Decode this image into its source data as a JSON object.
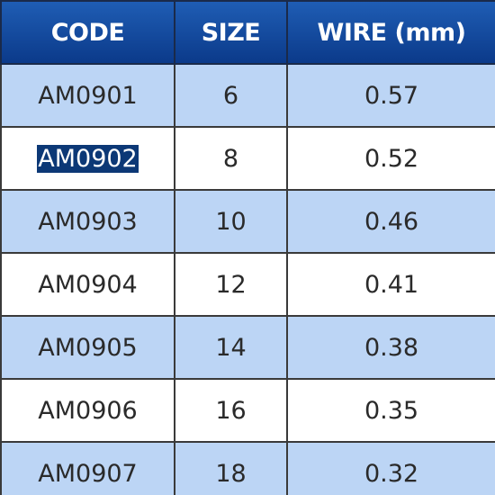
{
  "table": {
    "header": [
      "CODE",
      "SIZE",
      "WIRE (mm)"
    ],
    "rows": [
      [
        "AM0901",
        "6",
        "0.57"
      ],
      [
        "AM0902",
        "8",
        "0.52"
      ],
      [
        "AM0903",
        "10",
        "0.46"
      ],
      [
        "AM0904",
        "12",
        "0.41"
      ],
      [
        "AM0905",
        "14",
        "0.38"
      ],
      [
        "AM0906",
        "16",
        "0.35"
      ],
      [
        "AM0907",
        "18",
        "0.32"
      ]
    ]
  }
}
